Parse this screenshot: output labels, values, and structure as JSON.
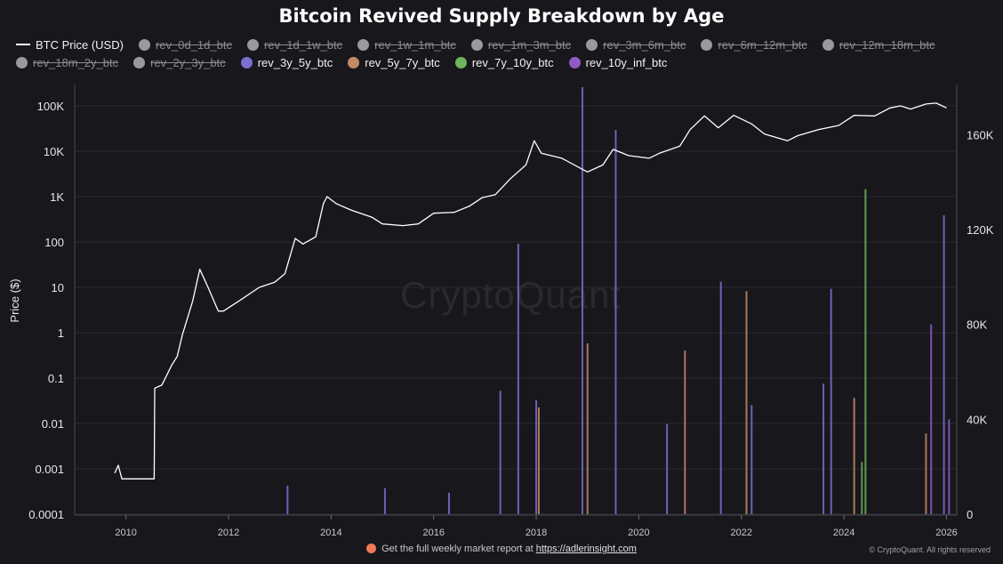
{
  "chart_data": {
    "type": "line+bar",
    "title": "Bitcoin Revived Supply Breakdown by Age",
    "ylabel": "Price ($)",
    "y_left_scale": "log",
    "y_left_ticks": [
      "0.0001",
      "0.001",
      "0.01",
      "0.1",
      "1",
      "10",
      "100",
      "1K",
      "10K",
      "100K"
    ],
    "y_left_range": [
      0.0001,
      100000
    ],
    "y_right_ticks": [
      "0",
      "40K",
      "80K",
      "120K",
      "160K"
    ],
    "y_right_range": [
      0,
      180000
    ],
    "x_ticks": [
      "2010",
      "2012",
      "2014",
      "2016",
      "2018",
      "2020",
      "2022",
      "2024",
      "2026"
    ],
    "x_range": [
      2009.0,
      2026.2
    ],
    "grid": true,
    "legend_position": "top",
    "legend": [
      {
        "name": "BTC Price (USD)",
        "color": "#ffffff",
        "active": true,
        "kind": "line"
      },
      {
        "name": "rev_0d_1d_btc",
        "color": "#9a99a0",
        "active": false,
        "kind": "dot"
      },
      {
        "name": "rev_1d_1w_btc",
        "color": "#9a99a0",
        "active": false,
        "kind": "dot"
      },
      {
        "name": "rev_1w_1m_btc",
        "color": "#9a99a0",
        "active": false,
        "kind": "dot"
      },
      {
        "name": "rev_1m_3m_btc",
        "color": "#9a99a0",
        "active": false,
        "kind": "dot"
      },
      {
        "name": "rev_3m_6m_btc",
        "color": "#9a99a0",
        "active": false,
        "kind": "dot"
      },
      {
        "name": "rev_6m_12m_btc",
        "color": "#9a99a0",
        "active": false,
        "kind": "dot"
      },
      {
        "name": "rev_12m_18m_btc",
        "color": "#9a99a0",
        "active": false,
        "kind": "dot"
      },
      {
        "name": "rev_18m_2y_btc",
        "color": "#9a99a0",
        "active": false,
        "kind": "dot"
      },
      {
        "name": "rev_2y_3y_btc",
        "color": "#9a99a0",
        "active": false,
        "kind": "dot"
      },
      {
        "name": "rev_3y_5y_btc",
        "color": "#7b6fd0",
        "active": true,
        "kind": "dot"
      },
      {
        "name": "rev_5y_7y_btc",
        "color": "#c48a66",
        "active": true,
        "kind": "dot"
      },
      {
        "name": "rev_7y_10y_btc",
        "color": "#6fb35a",
        "active": true,
        "kind": "dot"
      },
      {
        "name": "rev_10y_inf_btc",
        "color": "#8e5cc4",
        "active": true,
        "kind": "dot"
      }
    ],
    "price_series": {
      "name": "BTC Price (USD)",
      "x": [
        2009.78,
        2009.85,
        2009.92,
        2010.0,
        2010.3,
        2010.55,
        2010.56,
        2010.7,
        2010.9,
        2011.0,
        2011.1,
        2011.3,
        2011.44,
        2011.6,
        2011.8,
        2011.9,
        2012.2,
        2012.6,
        2012.9,
        2013.1,
        2013.3,
        2013.45,
        2013.7,
        2013.85,
        2013.92,
        2014.1,
        2014.4,
        2014.8,
        2015.0,
        2015.4,
        2015.7,
        2016.0,
        2016.4,
        2016.7,
        2016.95,
        2017.2,
        2017.5,
        2017.8,
        2017.96,
        2018.1,
        2018.5,
        2018.9,
        2019.0,
        2019.3,
        2019.5,
        2019.8,
        2020.2,
        2020.4,
        2020.8,
        2021.0,
        2021.28,
        2021.55,
        2021.85,
        2022.2,
        2022.45,
        2022.9,
        2023.1,
        2023.5,
        2023.9,
        2024.2,
        2024.6,
        2024.9,
        2025.1,
        2025.3,
        2025.6,
        2025.8,
        2026.0
      ],
      "y": [
        0.0008,
        0.0012,
        0.0006,
        0.0006,
        0.0006,
        0.0006,
        0.06,
        0.07,
        0.2,
        0.3,
        0.9,
        5,
        25,
        10,
        3,
        3,
        5,
        10,
        13,
        20,
        120,
        90,
        130,
        700,
        1000,
        700,
        500,
        350,
        250,
        230,
        250,
        430,
        450,
        620,
        950,
        1100,
        2500,
        5000,
        17000,
        9000,
        7000,
        4000,
        3500,
        5000,
        11000,
        8000,
        7000,
        9000,
        13000,
        30000,
        60000,
        33000,
        62000,
        40000,
        24000,
        17000,
        22000,
        30000,
        37000,
        62000,
        60000,
        90000,
        100000,
        85000,
        110000,
        115000,
        90000
      ]
    },
    "bars": [
      {
        "series": "rev_3y_5y_btc",
        "x": 2018.9,
        "value": 180000
      },
      {
        "series": "rev_3y_5y_btc",
        "x": 2019.55,
        "value": 162000
      },
      {
        "series": "rev_3y_5y_btc",
        "x": 2017.65,
        "value": 114000
      },
      {
        "series": "rev_3y_5y_btc",
        "x": 2025.95,
        "value": 126000
      },
      {
        "series": "rev_3y_5y_btc",
        "x": 2021.6,
        "value": 98000
      },
      {
        "series": "rev_3y_5y_btc",
        "x": 2023.75,
        "value": 95000
      },
      {
        "series": "rev_3y_5y_btc",
        "x": 2017.3,
        "value": 52000
      },
      {
        "series": "rev_3y_5y_btc",
        "x": 2018.0,
        "value": 48000
      },
      {
        "series": "rev_3y_5y_btc",
        "x": 2022.2,
        "value": 46000
      },
      {
        "series": "rev_3y_5y_btc",
        "x": 2023.6,
        "value": 55000
      },
      {
        "series": "rev_3y_5y_btc",
        "x": 2020.55,
        "value": 38000
      },
      {
        "series": "rev_3y_5y_btc",
        "x": 2013.15,
        "value": 12000
      },
      {
        "series": "rev_3y_5y_btc",
        "x": 2015.05,
        "value": 11000
      },
      {
        "series": "rev_3y_5y_btc",
        "x": 2016.3,
        "value": 9000
      },
      {
        "series": "rev_5y_7y_btc",
        "x": 2019.0,
        "value": 72000
      },
      {
        "series": "rev_5y_7y_btc",
        "x": 2022.1,
        "value": 94000
      },
      {
        "series": "rev_5y_7y_btc",
        "x": 2020.9,
        "value": 69000
      },
      {
        "series": "rev_5y_7y_btc",
        "x": 2018.05,
        "value": 45000
      },
      {
        "series": "rev_5y_7y_btc",
        "x": 2024.2,
        "value": 49000
      },
      {
        "series": "rev_5y_7y_btc",
        "x": 2025.6,
        "value": 34000
      },
      {
        "series": "rev_7y_10y_btc",
        "x": 2024.42,
        "value": 137000
      },
      {
        "series": "rev_7y_10y_btc",
        "x": 2024.35,
        "value": 22000
      },
      {
        "series": "rev_10y_inf_btc",
        "x": 2025.7,
        "value": 80000
      },
      {
        "series": "rev_10y_inf_btc",
        "x": 2026.05,
        "value": 40000
      }
    ]
  },
  "footer": {
    "text": "Get the full weekly market report at",
    "link": "https://adlerinsight.com",
    "copyright": "© CryptoQuant. All rights reserved"
  },
  "watermark": "CryptoQuant"
}
